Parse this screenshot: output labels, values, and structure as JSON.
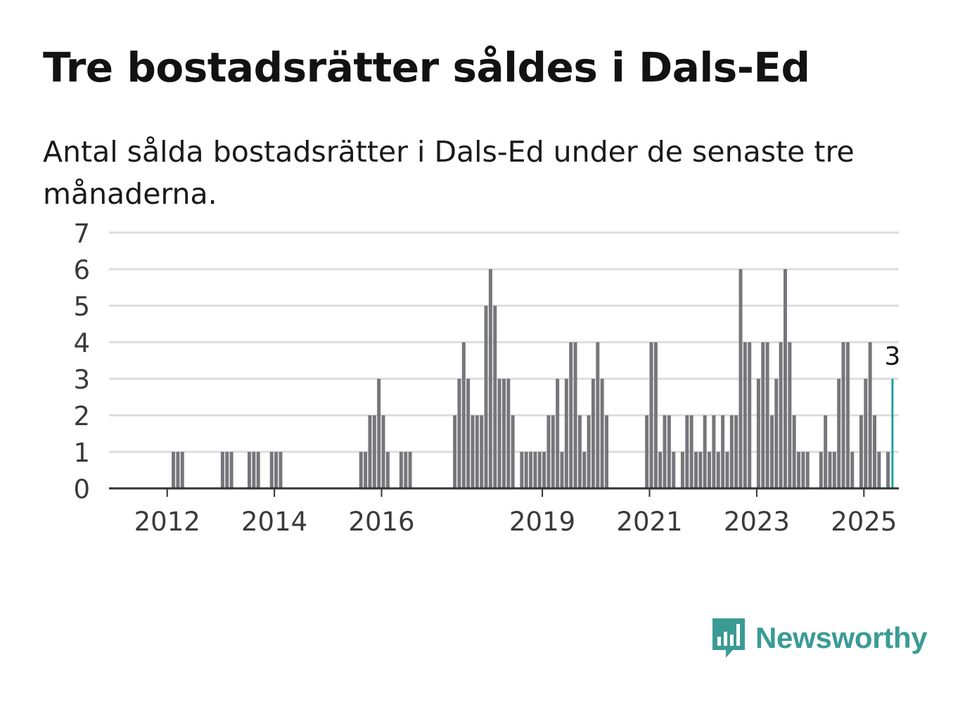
{
  "title": "Tre bostadsrätter såldes i Dals-Ed",
  "subtitle": "Antal sålda bostadsrätter i Dals-Ed under de senaste tre månaderna.",
  "brand": {
    "name": "Newsworthy",
    "color": "#3a9b95",
    "icon": "newsworthy-bar-chart-icon"
  },
  "chart_data": {
    "type": "bar",
    "title": "",
    "xlabel": "",
    "ylabel": "",
    "ylim": [
      0,
      7
    ],
    "yticks": [
      0,
      1,
      2,
      3,
      4,
      5,
      6,
      7
    ],
    "grid": true,
    "x_tick_labels": [
      "2012",
      "2014",
      "2016",
      "2019",
      "2021",
      "2023",
      "2025"
    ],
    "bar_color": "#76767b",
    "highlight_color": "#1ba39c",
    "highlight_label": "3",
    "series": [
      {
        "values": [
          0,
          0,
          0,
          0,
          0,
          0,
          0,
          0,
          0,
          0,
          0,
          0,
          0,
          1,
          1,
          1,
          0,
          0,
          0,
          0,
          0,
          0,
          0,
          0,
          1,
          1,
          1,
          0,
          0,
          0,
          1,
          1,
          1,
          0,
          0,
          1,
          1,
          1,
          0,
          0,
          0,
          0,
          0,
          0,
          0,
          0,
          0,
          0,
          0,
          0,
          0,
          0,
          0,
          0,
          0,
          1,
          1,
          2,
          2,
          3,
          2,
          1,
          0,
          0,
          1,
          1,
          1,
          0,
          0,
          0,
          0,
          0,
          0,
          0,
          0,
          0,
          2,
          3,
          4,
          3,
          2,
          2,
          2,
          5,
          6,
          5,
          3,
          3,
          3,
          2,
          0,
          1,
          1,
          1,
          1,
          1,
          1,
          2,
          2,
          3,
          1,
          3,
          4,
          4,
          2,
          1,
          2,
          3,
          4,
          3,
          2,
          0,
          0,
          0,
          0,
          0,
          0,
          0,
          0,
          2,
          4,
          4,
          1,
          2,
          2,
          1,
          0,
          1,
          2,
          2,
          1,
          1,
          2,
          1,
          2,
          1,
          2,
          1,
          2,
          2,
          6,
          4,
          4,
          0,
          3,
          4,
          4,
          2,
          3,
          4,
          6,
          4,
          2,
          1,
          1,
          1,
          0,
          0,
          1,
          2,
          1,
          1,
          3,
          4,
          4,
          1,
          0,
          2,
          3,
          4,
          2,
          1,
          0,
          1,
          3
        ]
      }
    ]
  }
}
